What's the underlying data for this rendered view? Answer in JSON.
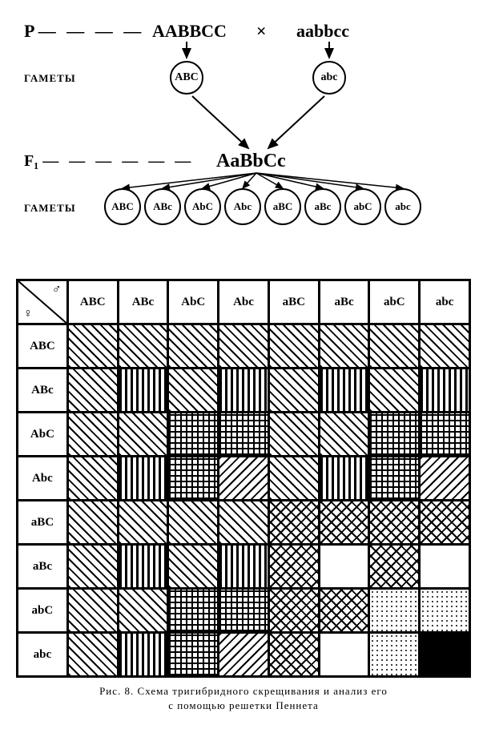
{
  "cross": {
    "p_label": "P",
    "p_dashes": "— — — —",
    "parent1": "AABBCC",
    "cross_symbol": "×",
    "parent2": "aabbcc",
    "gametes_label": "ГАМЕТЫ",
    "p_gamete1": "ABC",
    "p_gamete2": "abc",
    "f1_label": "F₁",
    "f1_dashes": "— — — — — —",
    "f1_genotype": "AaBbCc",
    "f1_gametes": [
      "ABC",
      "ABc",
      "AbC",
      "Abc",
      "aBC",
      "aBc",
      "abC",
      "abc"
    ]
  },
  "punnett": {
    "corner": {
      "male": "♂",
      "female": "♀"
    },
    "col_headers": [
      "ABC",
      "ABc",
      "AbC",
      "Abc",
      "aBC",
      "aBc",
      "abC",
      "abc"
    ],
    "row_headers": [
      "ABC",
      "ABc",
      "AbC",
      "Abc",
      "aBC",
      "aBc",
      "abC",
      "abc"
    ],
    "patterns": {
      "diag45": "pat-diag45",
      "vert": "pat-vert",
      "grid": "pat-grid",
      "diag135": "pat-diag135",
      "cross": "pat-cross",
      "white": "pat-white",
      "dots": "pat-dots",
      "solid": "pat-solid"
    },
    "cells": [
      [
        "diag45",
        "diag45",
        "diag45",
        "diag45",
        "diag45",
        "diag45",
        "diag45",
        "diag45"
      ],
      [
        "diag45",
        "vert",
        "diag45",
        "vert",
        "diag45",
        "vert",
        "diag45",
        "vert"
      ],
      [
        "diag45",
        "diag45",
        "grid",
        "grid",
        "diag45",
        "diag45",
        "grid",
        "grid"
      ],
      [
        "diag45",
        "vert",
        "grid",
        "diag135",
        "diag45",
        "vert",
        "grid",
        "diag135"
      ],
      [
        "diag45",
        "diag45",
        "diag45",
        "diag45",
        "cross",
        "cross",
        "cross",
        "cross"
      ],
      [
        "diag45",
        "vert",
        "diag45",
        "vert",
        "cross",
        "white",
        "cross",
        "white"
      ],
      [
        "diag45",
        "diag45",
        "grid",
        "grid",
        "cross",
        "cross",
        "dots",
        "dots"
      ],
      [
        "diag45",
        "vert",
        "grid",
        "diag135",
        "cross",
        "white",
        "dots",
        "solid"
      ]
    ]
  },
  "caption": {
    "line1": "Рис.  8.  Схема  тригибридного  скрещивания  и  анализ  его",
    "line2": "с  помощью  решетки  Пеннета"
  },
  "colors": {
    "fg": "#000000",
    "bg": "#ffffff"
  }
}
